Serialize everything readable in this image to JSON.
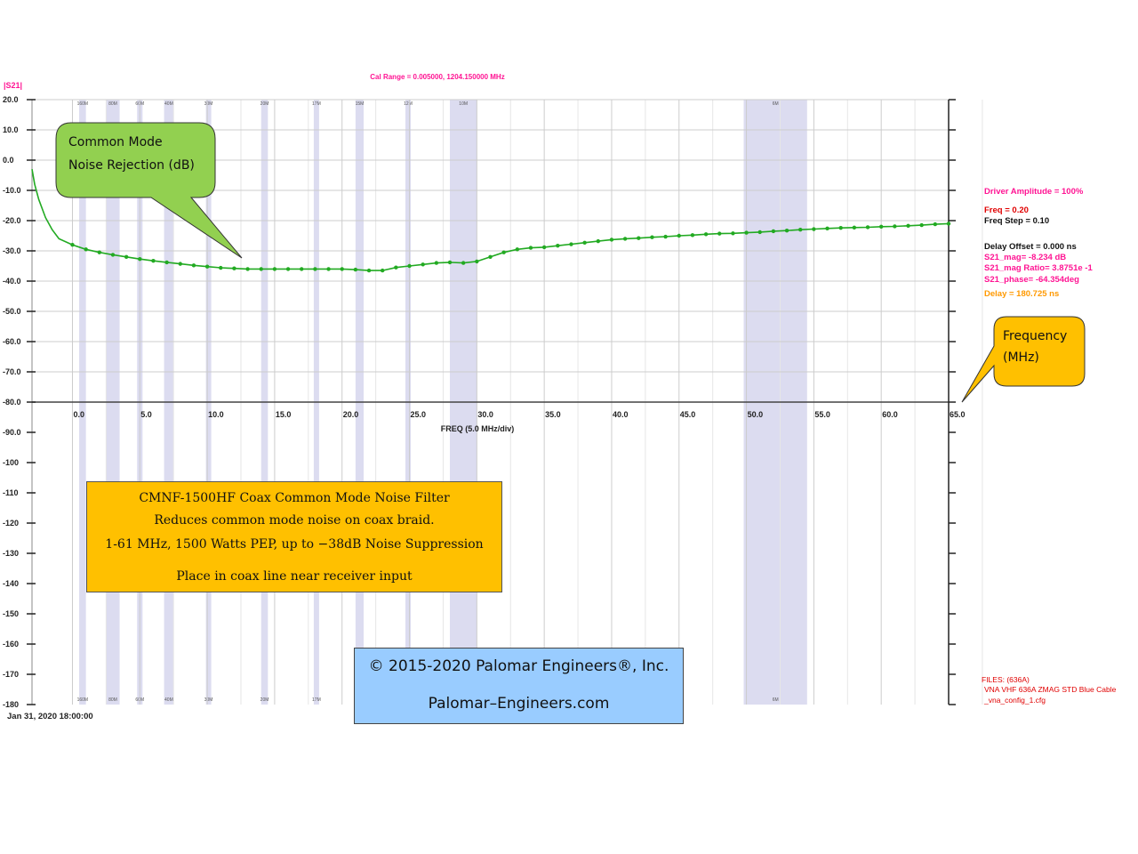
{
  "colors": {
    "magenta": "#ff1493",
    "black": "#111111",
    "orange": "#ff9900",
    "trace": "#22aa22",
    "band": "#dcdcf0",
    "red": "#e00000"
  },
  "header": {
    "s21_label": "|S21|",
    "cal_range": "Cal Range = 0.005000,  1204.150000 MHz"
  },
  "callouts": {
    "common_mode": [
      "Common Mode",
      "Noise Rejection (dB)"
    ],
    "frequency": [
      "Frequency",
      "(MHz)"
    ]
  },
  "filter_box": {
    "lines": [
      "CMNF-1500HF Coax Common Mode Noise Filter",
      "Reduces common mode noise on coax braid.",
      "1-61 MHz, 1500 Watts PEP, up to −38dB Noise Suppression",
      "Place in coax line near receiver input"
    ]
  },
  "copyright": {
    "line1": "© 2015-2020 Palomar Engineers®, Inc.",
    "line2": "Palomar–Engineers.com"
  },
  "footer": {
    "date": "Jan 31, 2020  18:00:00"
  },
  "right_panel": {
    "driver_amplitude": "Driver Amplitude = 100%",
    "freq": "Freq = 0.20",
    "freq_step": "Freq Step = 0.10",
    "delay_offset": "Delay Offset =  0.000 ns",
    "s21_mag": "S21_mag= -8.234 dB",
    "s21_mag_ratio": "S21_mag Ratio= 3.8751e -1",
    "s21_phase": "S21_phase= -64.354deg",
    "delay": "Delay =  180.725 ns"
  },
  "files": {
    "line1": "FILES: (636A)",
    "line2": "VNA VHF 636A ZMAG STD Blue Cable",
    "line3": "_vna_config_1.cfg"
  },
  "chart_data": {
    "type": "line",
    "xlabel": "FREQ (5.0 MHz/div)",
    "ylabel": "|S21|",
    "xlim": [
      -3.0,
      65.0
    ],
    "ylim": [
      -180,
      20
    ],
    "x_ticks": [
      "0.0",
      "5.0",
      "10.0",
      "15.0",
      "20.0",
      "25.0",
      "30.0",
      "35.0",
      "40.0",
      "45.0",
      "50.0",
      "55.0",
      "60.0",
      "65.0"
    ],
    "y_ticks": [
      "20.0",
      "10.0",
      "0.0",
      "-10.0",
      "-20.0",
      "-30.0",
      "-40.0",
      "-50.0",
      "-60.0",
      "-70.0",
      "-80.0",
      "-90.0",
      "-100",
      "-110",
      "-120",
      "-130",
      "-140",
      "-150",
      "-160",
      "-170",
      "-180"
    ],
    "bands": [
      {
        "label": "160M",
        "from": 0.5,
        "to": 1.0
      },
      {
        "label": "80M",
        "from": 2.5,
        "to": 3.5
      },
      {
        "label": "60M",
        "from": 4.8,
        "to": 5.2
      },
      {
        "label": "40M",
        "from": 6.8,
        "to": 7.5
      },
      {
        "label": "30M",
        "from": 10.0,
        "to": 10.2
      },
      {
        "label": "20M",
        "from": 14.0,
        "to": 14.5
      },
      {
        "label": "17M",
        "from": 18.0,
        "to": 18.2
      },
      {
        "label": "15M",
        "from": 21.0,
        "to": 21.6
      },
      {
        "label": "12M",
        "from": 24.8,
        "to": 25.0
      },
      {
        "label": "10M",
        "from": 28.0,
        "to": 30.0
      },
      {
        "label": "6M",
        "from": 49.8,
        "to": 54.5
      }
    ],
    "series": [
      {
        "x": [
          -3.0,
          -2.8,
          -2.5,
          -2.0,
          -1.5,
          -1.0,
          0.0,
          1.0,
          2.0,
          3.0,
          4.0,
          5.0,
          6.0,
          7.0,
          8.0,
          9.0,
          10.0,
          11.0,
          12.0,
          13.0,
          14.0,
          15.0,
          16.0,
          17.0,
          18.0,
          19.0,
          20.0,
          21.0,
          22.0,
          23.0,
          24.0,
          25.0,
          26.0,
          27.0,
          28.0,
          29.0,
          30.0,
          31.0,
          32.0,
          33.0,
          34.0,
          35.0,
          36.0,
          37.0,
          38.0,
          39.0,
          40.0,
          41.0,
          42.0,
          43.0,
          44.0,
          45.0,
          46.0,
          47.0,
          48.0,
          49.0,
          50.0,
          51.0,
          52.0,
          53.0,
          54.0,
          55.0,
          56.0,
          57.0,
          58.0,
          59.0,
          60.0,
          61.0,
          62.0,
          63.0,
          64.0,
          65.0
        ],
        "y": [
          -3.0,
          -8.0,
          -13.0,
          -19.0,
          -23.0,
          -26.0,
          -28.0,
          -29.5,
          -30.5,
          -31.3,
          -32.0,
          -32.7,
          -33.3,
          -33.8,
          -34.3,
          -34.8,
          -35.2,
          -35.6,
          -35.8,
          -36.0,
          -36.0,
          -36.0,
          -36.0,
          -36.0,
          -36.0,
          -36.0,
          -36.0,
          -36.2,
          -36.5,
          -36.5,
          -35.5,
          -35.0,
          -34.5,
          -34.0,
          -33.8,
          -34.0,
          -33.5,
          -32.0,
          -30.5,
          -29.5,
          -29.0,
          -28.8,
          -28.3,
          -27.8,
          -27.3,
          -26.8,
          -26.3,
          -26.0,
          -25.8,
          -25.5,
          -25.3,
          -25.0,
          -24.8,
          -24.5,
          -24.3,
          -24.2,
          -24.0,
          -23.8,
          -23.5,
          -23.3,
          -23.0,
          -22.8,
          -22.6,
          -22.4,
          -22.3,
          -22.2,
          -22.0,
          -21.9,
          -21.7,
          -21.5,
          -21.2,
          -21.0
        ]
      }
    ]
  }
}
